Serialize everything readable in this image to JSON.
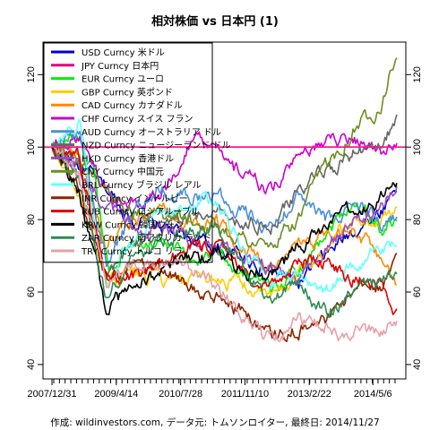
{
  "chart_data": {
    "type": "line",
    "title": "相対株価 vs 日本円 (1)",
    "caption": "作成: wildinvestors.com, データ元: トムソンロイター, 最終日: 2014/11/27",
    "x_tick_labels": [
      "2007/12/31",
      "2009/4/14",
      "2010/7/28",
      "2011/11/10",
      "2013/2/22",
      "2014/5/6"
    ],
    "y_ticks": [
      40,
      60,
      80,
      100,
      120
    ],
    "ylim": [
      38,
      127
    ],
    "reference_line": {
      "y": 100,
      "color": "#ff1493"
    },
    "x_ticks_approx": [
      0,
      470,
      940,
      1410,
      1880,
      2345
    ],
    "x_range": [
      0,
      2520
    ],
    "legend_placement": "top-left",
    "series": [
      {
        "name": "USD Curncy 米ドル",
        "color": "#0000cc",
        "points": [
          [
            0,
            100
          ],
          [
            200,
            95
          ],
          [
            400,
            88
          ],
          [
            600,
            80
          ],
          [
            800,
            78
          ],
          [
            1000,
            75
          ],
          [
            1200,
            72
          ],
          [
            1400,
            70
          ],
          [
            1600,
            66
          ],
          [
            1800,
            62
          ],
          [
            2000,
            70
          ],
          [
            2200,
            77
          ],
          [
            2400,
            82
          ],
          [
            2520,
            90
          ]
        ]
      },
      {
        "name": "JPY Curncy 日本円",
        "color": "#e0007a",
        "points": [
          [
            0,
            100
          ],
          [
            2520,
            100
          ]
        ]
      },
      {
        "name": "EUR Curncy ユーロ",
        "color": "#00ee00",
        "points": [
          [
            0,
            100
          ],
          [
            150,
            103
          ],
          [
            300,
            92
          ],
          [
            420,
            65
          ],
          [
            520,
            72
          ],
          [
            700,
            75
          ],
          [
            900,
            72
          ],
          [
            1000,
            68
          ],
          [
            1200,
            72
          ],
          [
            1400,
            65
          ],
          [
            1600,
            60
          ],
          [
            1800,
            67
          ],
          [
            1900,
            72
          ],
          [
            2000,
            77
          ],
          [
            2200,
            85
          ],
          [
            2300,
            82
          ],
          [
            2400,
            78
          ],
          [
            2520,
            80
          ]
        ]
      },
      {
        "name": "GBP Curncy 英ポンド",
        "color": "#ffcc00",
        "points": [
          [
            0,
            100
          ],
          [
            200,
            88
          ],
          [
            400,
            62
          ],
          [
            600,
            65
          ],
          [
            800,
            63
          ],
          [
            1000,
            62
          ],
          [
            1200,
            64
          ],
          [
            1400,
            62
          ],
          [
            1600,
            58
          ],
          [
            1800,
            65
          ],
          [
            2000,
            72
          ],
          [
            2200,
            80
          ],
          [
            2400,
            79
          ],
          [
            2520,
            84
          ]
        ]
      },
      {
        "name": "CAD Curncy カナダドル",
        "color": "#ff8800",
        "points": [
          [
            0,
            100
          ],
          [
            200,
            98
          ],
          [
            400,
            72
          ],
          [
            600,
            80
          ],
          [
            800,
            82
          ],
          [
            1000,
            78
          ],
          [
            1200,
            80
          ],
          [
            1400,
            72
          ],
          [
            1600,
            65
          ],
          [
            1800,
            72
          ],
          [
            2000,
            76
          ],
          [
            2200,
            78
          ],
          [
            2400,
            70
          ],
          [
            2520,
            60
          ]
        ]
      },
      {
        "name": "CHF Curncy スイス フラン",
        "color": "#cc00cc",
        "points": [
          [
            0,
            100
          ],
          [
            200,
            104
          ],
          [
            400,
            88
          ],
          [
            600,
            84
          ],
          [
            800,
            88
          ],
          [
            940,
            95
          ],
          [
            1050,
            103
          ],
          [
            1200,
            98
          ],
          [
            1300,
            94
          ],
          [
            1400,
            92
          ],
          [
            1600,
            88
          ],
          [
            1800,
            96
          ],
          [
            2000,
            102
          ],
          [
            2200,
            103
          ],
          [
            2400,
            98
          ],
          [
            2520,
            102
          ]
        ]
      },
      {
        "name": "AUD Curncy オーストラリア ドル",
        "color": "#4a90d9",
        "points": [
          [
            0,
            100
          ],
          [
            200,
            104
          ],
          [
            400,
            68
          ],
          [
            600,
            82
          ],
          [
            800,
            88
          ],
          [
            1000,
            86
          ],
          [
            1200,
            87
          ],
          [
            1400,
            82
          ],
          [
            1600,
            78
          ],
          [
            1800,
            86
          ],
          [
            2000,
            80
          ],
          [
            2200,
            84
          ],
          [
            2400,
            80
          ],
          [
            2520,
            80
          ]
        ]
      },
      {
        "name": "NZD Curncy ニュージーランド ドル",
        "color": "#666666",
        "points": [
          [
            0,
            100
          ],
          [
            200,
            95
          ],
          [
            400,
            64
          ],
          [
            600,
            72
          ],
          [
            800,
            78
          ],
          [
            1000,
            80
          ],
          [
            1200,
            82
          ],
          [
            1400,
            80
          ],
          [
            1600,
            77
          ],
          [
            1800,
            88
          ],
          [
            2000,
            93
          ],
          [
            2200,
            98
          ],
          [
            2400,
            100
          ],
          [
            2520,
            108
          ]
        ]
      },
      {
        "name": "HKD Curncy 香港ドル",
        "color": "#9a4abf",
        "points": [
          [
            0,
            100
          ],
          [
            200,
            94
          ],
          [
            400,
            84
          ],
          [
            600,
            78
          ],
          [
            800,
            78
          ],
          [
            1000,
            74
          ],
          [
            1200,
            73
          ],
          [
            1400,
            70
          ],
          [
            1600,
            66
          ],
          [
            1800,
            64
          ],
          [
            2000,
            72
          ],
          [
            2200,
            80
          ],
          [
            2400,
            82
          ],
          [
            2520,
            90
          ]
        ]
      },
      {
        "name": "CNY Curncy 中国元",
        "color": "#6b8e23",
        "points": [
          [
            0,
            100
          ],
          [
            200,
            97
          ],
          [
            400,
            90
          ],
          [
            600,
            82
          ],
          [
            800,
            82
          ],
          [
            1000,
            80
          ],
          [
            1200,
            78
          ],
          [
            1400,
            75
          ],
          [
            1600,
            72
          ],
          [
            1800,
            80
          ],
          [
            2000,
            95
          ],
          [
            2200,
            105
          ],
          [
            2400,
            112
          ],
          [
            2520,
            126
          ]
        ]
      },
      {
        "name": "BRL Curncy ブラジル レアル",
        "color": "#66ffff",
        "points": [
          [
            0,
            100
          ],
          [
            200,
            108
          ],
          [
            400,
            62
          ],
          [
            600,
            76
          ],
          [
            800,
            82
          ],
          [
            1000,
            84
          ],
          [
            1200,
            86
          ],
          [
            1400,
            72
          ],
          [
            1600,
            62
          ],
          [
            1800,
            66
          ],
          [
            2000,
            60
          ],
          [
            2200,
            68
          ],
          [
            2400,
            72
          ],
          [
            2520,
            74
          ]
        ]
      },
      {
        "name": "INR Curncy インドルピー",
        "color": "#8b2500",
        "points": [
          [
            0,
            100
          ],
          [
            200,
            88
          ],
          [
            400,
            62
          ],
          [
            600,
            68
          ],
          [
            800,
            66
          ],
          [
            1000,
            62
          ],
          [
            1200,
            60
          ],
          [
            1400,
            54
          ],
          [
            1600,
            48
          ],
          [
            1800,
            50
          ],
          [
            2000,
            52
          ],
          [
            2200,
            60
          ],
          [
            2400,
            62
          ],
          [
            2520,
            68
          ]
        ]
      },
      {
        "name": "RUB Curncy ロシアルーブル",
        "color": "#dd0000",
        "points": [
          [
            0,
            100
          ],
          [
            200,
            98
          ],
          [
            400,
            62
          ],
          [
            600,
            64
          ],
          [
            800,
            68
          ],
          [
            1000,
            72
          ],
          [
            1200,
            73
          ],
          [
            1400,
            66
          ],
          [
            1600,
            62
          ],
          [
            1800,
            68
          ],
          [
            2000,
            68
          ],
          [
            2200,
            64
          ],
          [
            2400,
            62
          ],
          [
            2520,
            55
          ]
        ]
      },
      {
        "name": "KRW Curncy 韓国ウォン",
        "color": "#000000",
        "points": [
          [
            0,
            100
          ],
          [
            200,
            88
          ],
          [
            400,
            55
          ],
          [
            600,
            62
          ],
          [
            800,
            66
          ],
          [
            1000,
            68
          ],
          [
            1200,
            72
          ],
          [
            1400,
            66
          ],
          [
            1600,
            64
          ],
          [
            1800,
            72
          ],
          [
            2000,
            78
          ],
          [
            2200,
            82
          ],
          [
            2400,
            86
          ],
          [
            2520,
            89
          ]
        ]
      },
      {
        "name": "ZAR Curncy 南アフリカ ランド",
        "color": "#2e8b57",
        "points": [
          [
            0,
            100
          ],
          [
            200,
            90
          ],
          [
            400,
            58
          ],
          [
            600,
            70
          ],
          [
            800,
            74
          ],
          [
            1000,
            76
          ],
          [
            1200,
            78
          ],
          [
            1400,
            66
          ],
          [
            1600,
            58
          ],
          [
            1800,
            62
          ],
          [
            2000,
            54
          ],
          [
            2200,
            60
          ],
          [
            2400,
            62
          ],
          [
            2520,
            66
          ]
        ]
      },
      {
        "name": "TRY Curncy トルコ リラ",
        "color": "#e8a0a8",
        "points": [
          [
            0,
            100
          ],
          [
            200,
            92
          ],
          [
            400,
            62
          ],
          [
            600,
            68
          ],
          [
            800,
            68
          ],
          [
            1000,
            66
          ],
          [
            1200,
            62
          ],
          [
            1400,
            52
          ],
          [
            1600,
            46
          ],
          [
            1800,
            52
          ],
          [
            2000,
            50
          ],
          [
            2200,
            48
          ],
          [
            2400,
            50
          ],
          [
            2520,
            52
          ]
        ]
      }
    ]
  }
}
